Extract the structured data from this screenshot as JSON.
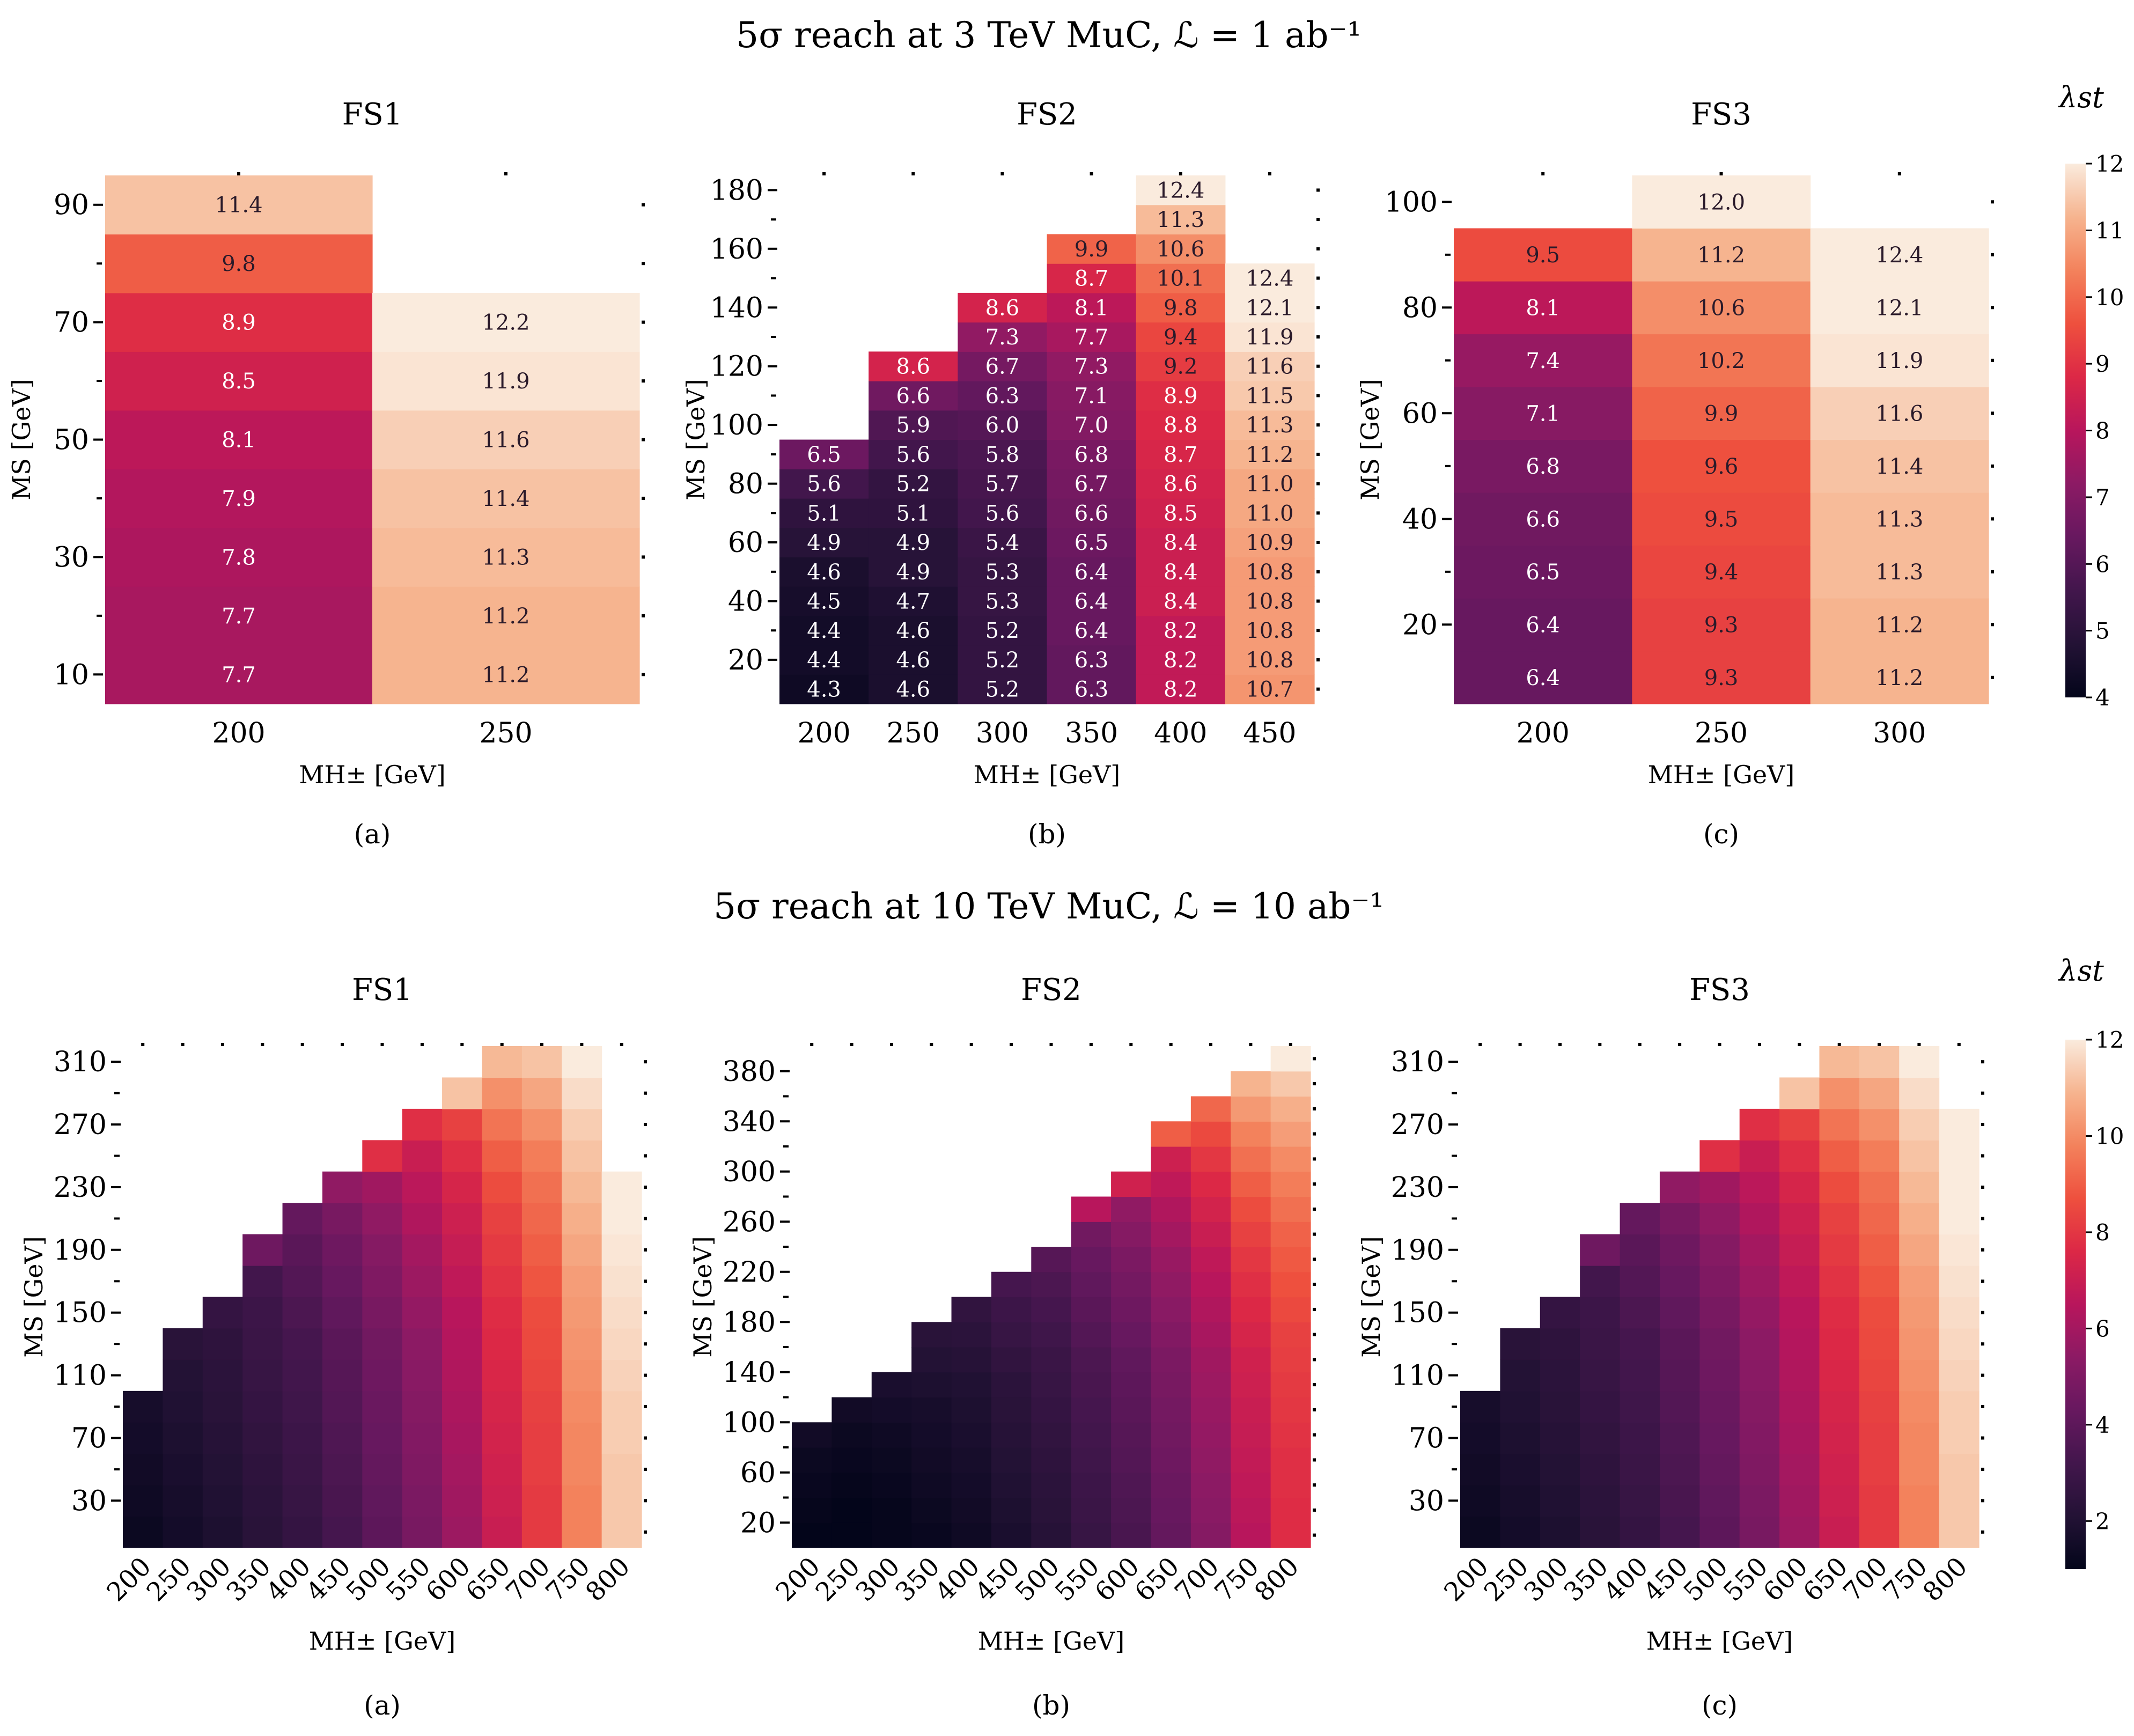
{
  "figures": [
    {
      "title": "5σ reach at 3 TeV MuC, ℒ = 1 ab⁻¹",
      "colorbar": {
        "label": "λst",
        "ticks": [
          4,
          5,
          6,
          7,
          8,
          9,
          10,
          11,
          12
        ],
        "vmin": 4,
        "vmax": 12
      }
    },
    {
      "title": "5σ reach at 10 TeV MuC, ℒ = 10 ab⁻¹",
      "colorbar": {
        "label": "λst",
        "ticks": [
          2,
          4,
          6,
          8,
          10,
          12
        ],
        "vmin": 1,
        "vmax": 12
      }
    }
  ],
  "chart_data": [
    {
      "type": "heatmap",
      "title": "FS1",
      "caption": "(a)",
      "xlabel": "MH± [GeV]",
      "ylabel": "MS [GeV]",
      "x": [
        200,
        250
      ],
      "y": [
        10,
        20,
        30,
        40,
        50,
        60,
        70,
        80,
        90
      ],
      "yticks": [
        10,
        30,
        50,
        70,
        90
      ],
      "colorscale": "rocket",
      "vmin": 4,
      "vmax": 12,
      "annotated": true,
      "columns": [
        [
          7.7,
          7.7,
          7.8,
          7.9,
          8.1,
          8.5,
          8.9,
          9.8,
          11.4
        ],
        [
          11.2,
          11.2,
          11.3,
          11.4,
          11.6,
          11.9,
          12.2,
          null,
          null
        ]
      ]
    },
    {
      "type": "heatmap",
      "title": "FS2",
      "caption": "(b)",
      "xlabel": "MH± [GeV]",
      "ylabel": "MS [GeV]",
      "x": [
        200,
        250,
        300,
        350,
        400,
        450
      ],
      "y": [
        10,
        20,
        30,
        40,
        50,
        60,
        70,
        80,
        90,
        100,
        110,
        120,
        130,
        140,
        150,
        160,
        170,
        180
      ],
      "yticks": [
        20,
        40,
        60,
        80,
        100,
        120,
        140,
        160,
        180
      ],
      "colorscale": "rocket",
      "vmin": 4,
      "vmax": 12,
      "annotated": true,
      "columns": [
        [
          4.3,
          4.4,
          4.4,
          4.5,
          4.6,
          4.9,
          5.1,
          5.6,
          6.5
        ],
        [
          4.6,
          4.6,
          4.6,
          4.7,
          4.9,
          4.9,
          5.1,
          5.2,
          5.6,
          5.9,
          6.6,
          8.6
        ],
        [
          5.2,
          5.2,
          5.2,
          5.3,
          5.3,
          5.4,
          5.6,
          5.7,
          5.8,
          6.0,
          6.3,
          6.7,
          7.3,
          8.6
        ],
        [
          6.3,
          6.3,
          6.4,
          6.4,
          6.4,
          6.5,
          6.6,
          6.7,
          6.8,
          7.0,
          7.1,
          7.3,
          7.7,
          8.1,
          8.7,
          9.9
        ],
        [
          8.2,
          8.2,
          8.2,
          8.4,
          8.4,
          8.4,
          8.5,
          8.6,
          8.7,
          8.8,
          8.9,
          9.2,
          9.4,
          9.8,
          10.1,
          10.6,
          11.3,
          12.4
        ],
        [
          10.7,
          10.8,
          10.8,
          10.8,
          10.8,
          10.9,
          11.0,
          11.0,
          11.2,
          11.3,
          11.5,
          11.6,
          11.9,
          12.1,
          12.4
        ]
      ]
    },
    {
      "type": "heatmap",
      "title": "FS3",
      "caption": "(c)",
      "xlabel": "MH± [GeV]",
      "ylabel": "MS [GeV]",
      "x": [
        200,
        250,
        300
      ],
      "y": [
        10,
        20,
        30,
        40,
        50,
        60,
        70,
        80,
        90,
        100
      ],
      "yticks": [
        20,
        40,
        60,
        80,
        100
      ],
      "colorscale": "rocket",
      "vmin": 4,
      "vmax": 12,
      "annotated": true,
      "columns": [
        [
          6.4,
          6.4,
          6.5,
          6.6,
          6.8,
          7.1,
          7.4,
          8.1,
          9.5
        ],
        [
          9.3,
          9.3,
          9.4,
          9.5,
          9.6,
          9.9,
          10.2,
          10.6,
          11.2,
          12.0
        ],
        [
          11.2,
          11.2,
          11.3,
          11.3,
          11.4,
          11.6,
          11.9,
          12.1,
          12.4
        ]
      ]
    },
    {
      "type": "heatmap",
      "title": "FS1",
      "caption": "(a)",
      "xlabel": "MH± [GeV]",
      "ylabel": "MS [GeV]",
      "x": [
        200,
        250,
        300,
        350,
        400,
        450,
        500,
        550,
        600,
        650,
        700,
        750,
        800
      ],
      "y_start": 10,
      "y_step": 20,
      "yticks": [
        30,
        70,
        110,
        150,
        190,
        230,
        270,
        310
      ],
      "colorscale": "rocket",
      "vmin": 1,
      "vmax": 12,
      "annotated": false,
      "columns": [
        [
          1.3,
          1.4,
          1.5,
          1.6,
          1.7
        ],
        [
          1.6,
          1.7,
          1.8,
          1.9,
          2.0,
          2.1,
          2.3
        ],
        [
          1.9,
          2.0,
          2.1,
          2.2,
          2.3,
          2.4,
          2.5,
          2.7
        ],
        [
          2.3,
          2.4,
          2.5,
          2.6,
          2.7,
          2.8,
          2.9,
          3.0,
          3.2,
          4.5
        ],
        [
          2.7,
          2.8,
          2.9,
          3.0,
          3.1,
          3.2,
          3.3,
          3.5,
          3.7,
          3.9,
          4.2
        ],
        [
          3.3,
          3.4,
          3.5,
          3.6,
          3.7,
          3.8,
          3.9,
          4.1,
          4.3,
          4.5,
          4.8,
          5.5
        ],
        [
          4.0,
          4.1,
          4.2,
          4.3,
          4.4,
          4.5,
          4.6,
          4.8,
          5.0,
          5.2,
          5.5,
          5.9,
          7.8
        ],
        [
          4.8,
          4.9,
          5.0,
          5.1,
          5.2,
          5.3,
          5.4,
          5.6,
          5.8,
          6.0,
          6.3,
          6.6,
          7.0,
          7.8
        ],
        [
          5.8,
          5.9,
          6.0,
          6.1,
          6.2,
          6.3,
          6.4,
          6.5,
          6.7,
          6.9,
          7.1,
          7.4,
          7.8,
          8.3,
          11.2
        ],
        [
          7.0,
          7.1,
          7.2,
          7.3,
          7.4,
          7.5,
          7.6,
          7.7,
          7.9,
          8.1,
          8.3,
          8.6,
          9.0,
          9.5,
          10.1,
          11.0
        ],
        [
          8.1,
          8.1,
          8.2,
          8.2,
          8.3,
          8.4,
          8.5,
          8.6,
          8.8,
          9.0,
          9.2,
          9.4,
          9.7,
          10.1,
          10.6,
          11.2
        ],
        [
          9.8,
          9.8,
          9.9,
          9.9,
          10.0,
          10.1,
          10.2,
          10.3,
          10.4,
          10.6,
          10.8,
          11.0,
          11.2,
          11.4,
          11.7,
          12.0
        ],
        [
          11.3,
          11.3,
          11.3,
          11.4,
          11.4,
          11.5,
          11.6,
          11.7,
          11.8,
          11.9,
          12.0,
          12.1
        ]
      ]
    },
    {
      "type": "heatmap",
      "title": "FS2",
      "caption": "(b)",
      "xlabel": "MH± [GeV]",
      "ylabel": "MS [GeV]",
      "x": [
        200,
        250,
        300,
        350,
        400,
        450,
        500,
        550,
        600,
        650,
        700,
        750,
        800
      ],
      "y_start": 10,
      "y_step": 20,
      "yticks": [
        20,
        60,
        100,
        140,
        180,
        220,
        260,
        300,
        340,
        380
      ],
      "colorscale": "rocket",
      "vmin": 1,
      "vmax": 12,
      "annotated": false,
      "columns": [
        [
          1.0,
          1.1,
          1.2,
          1.3,
          1.5
        ],
        [
          1.0,
          1.0,
          1.1,
          1.2,
          1.3,
          1.5
        ],
        [
          1.1,
          1.1,
          1.2,
          1.3,
          1.4,
          1.6,
          1.8
        ],
        [
          1.2,
          1.3,
          1.4,
          1.5,
          1.6,
          1.7,
          1.9,
          2.1,
          2.3
        ],
        [
          1.4,
          1.5,
          1.6,
          1.7,
          1.8,
          1.9,
          2.0,
          2.2,
          2.4,
          2.6
        ],
        [
          1.8,
          1.9,
          2.0,
          2.1,
          2.2,
          2.3,
          2.4,
          2.6,
          2.8,
          3.0,
          3.3
        ],
        [
          2.2,
          2.3,
          2.4,
          2.5,
          2.6,
          2.7,
          2.8,
          2.9,
          3.1,
          3.3,
          3.5,
          3.8
        ],
        [
          2.8,
          2.9,
          3.0,
          3.1,
          3.2,
          3.3,
          3.4,
          3.5,
          3.7,
          3.9,
          4.1,
          4.3,
          4.6,
          6.5
        ],
        [
          3.4,
          3.5,
          3.6,
          3.7,
          3.8,
          3.9,
          4.0,
          4.1,
          4.3,
          4.5,
          4.7,
          4.9,
          5.2,
          5.5,
          7.2
        ],
        [
          4.2,
          4.3,
          4.4,
          4.5,
          4.6,
          4.7,
          4.8,
          4.9,
          5.1,
          5.3,
          5.5,
          5.7,
          6.0,
          6.3,
          6.7,
          7.1,
          9.0
        ],
        [
          5.2,
          5.3,
          5.4,
          5.5,
          5.6,
          5.7,
          5.8,
          5.9,
          6.1,
          6.3,
          6.5,
          6.7,
          7.0,
          7.3,
          7.6,
          8.0,
          8.5,
          9.2
        ],
        [
          6.5,
          6.6,
          6.7,
          6.8,
          6.9,
          7.0,
          7.1,
          7.2,
          7.4,
          7.6,
          7.8,
          8.0,
          8.3,
          8.6,
          9.0,
          9.4,
          9.8,
          10.3,
          10.9
        ],
        [
          7.7,
          7.7,
          7.8,
          7.8,
          7.9,
          8.0,
          8.1,
          8.2,
          8.3,
          8.5,
          8.7,
          8.9,
          9.1,
          9.4,
          9.7,
          10.0,
          10.4,
          10.8,
          11.3,
          12.0
        ]
      ]
    },
    {
      "type": "heatmap",
      "title": "FS3",
      "caption": "(c)",
      "xlabel": "MH± [GeV]",
      "ylabel": "MS [GeV]",
      "x": [
        200,
        250,
        300,
        350,
        400,
        450,
        500,
        550,
        600,
        650,
        700,
        750,
        800
      ],
      "y_start": 10,
      "y_step": 20,
      "yticks": [
        30,
        70,
        110,
        150,
        190,
        230,
        270,
        310
      ],
      "colorscale": "rocket",
      "vmin": 1,
      "vmax": 12,
      "annotated": false,
      "columns": [
        [
          1.3,
          1.4,
          1.5,
          1.6,
          1.7
        ],
        [
          1.6,
          1.7,
          1.8,
          1.9,
          2.0,
          2.1,
          2.3
        ],
        [
          1.9,
          2.0,
          2.1,
          2.2,
          2.3,
          2.4,
          2.5,
          2.7
        ],
        [
          2.3,
          2.4,
          2.5,
          2.6,
          2.7,
          2.8,
          2.9,
          3.0,
          3.2,
          4.5
        ],
        [
          2.7,
          2.8,
          2.9,
          3.0,
          3.1,
          3.2,
          3.3,
          3.5,
          3.7,
          3.9,
          4.2
        ],
        [
          3.3,
          3.4,
          3.5,
          3.6,
          3.7,
          3.8,
          3.9,
          4.1,
          4.3,
          4.5,
          4.8,
          5.5
        ],
        [
          4.0,
          4.1,
          4.2,
          4.3,
          4.4,
          4.5,
          4.6,
          4.8,
          5.0,
          5.2,
          5.5,
          5.9,
          7.8
        ],
        [
          4.8,
          4.9,
          5.0,
          5.1,
          5.2,
          5.3,
          5.4,
          5.6,
          5.8,
          6.0,
          6.3,
          6.6,
          7.0,
          7.8
        ],
        [
          5.8,
          5.9,
          6.0,
          6.1,
          6.2,
          6.3,
          6.4,
          6.5,
          6.7,
          6.9,
          7.1,
          7.4,
          7.8,
          8.3,
          11.2
        ],
        [
          7.0,
          7.1,
          7.2,
          7.3,
          7.4,
          7.5,
          7.6,
          7.7,
          7.9,
          8.1,
          8.3,
          8.6,
          9.0,
          9.5,
          10.1,
          11.0
        ],
        [
          8.1,
          8.1,
          8.2,
          8.2,
          8.3,
          8.4,
          8.5,
          8.6,
          8.8,
          9.0,
          9.2,
          9.4,
          9.7,
          10.1,
          10.6,
          11.2
        ],
        [
          9.8,
          9.8,
          9.9,
          9.9,
          10.0,
          10.1,
          10.2,
          10.3,
          10.4,
          10.6,
          10.8,
          11.0,
          11.2,
          11.4,
          11.7,
          12.0
        ],
        [
          11.3,
          11.3,
          11.3,
          11.4,
          11.4,
          11.5,
          11.6,
          11.7,
          11.8,
          11.9,
          12.0,
          12.1,
          12.2,
          12.3
        ]
      ]
    }
  ]
}
